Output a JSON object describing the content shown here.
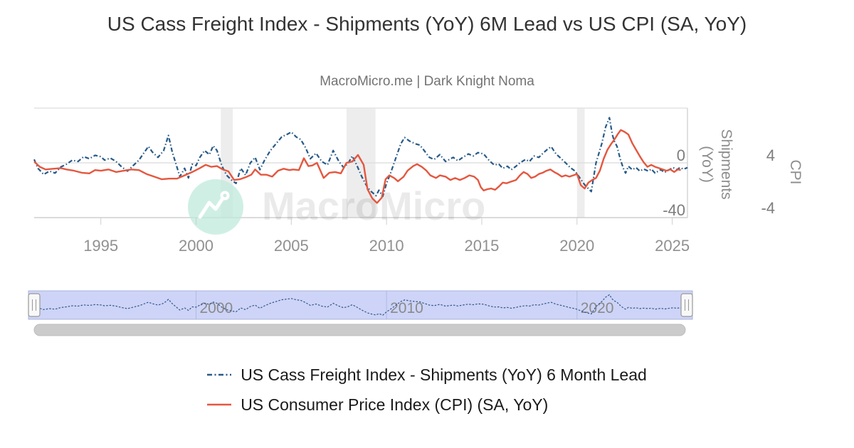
{
  "header": {
    "title": "US Cass Freight Index - Shipments (YoY) 6M Lead vs US CPI (SA, YoY)",
    "subtitle": "MacroMicro.me | Dark Knight Noma"
  },
  "watermark": {
    "text": "MacroMicro"
  },
  "chart_data": {
    "type": "line",
    "x_range": [
      1991.5,
      2025.8
    ],
    "x_ticks": [
      1995,
      2000,
      2005,
      2010,
      2015,
      2020,
      2025
    ],
    "grid": "horizontal-only",
    "legend_position": "bottom-left-aligned-centered-block",
    "axes": {
      "y1": {
        "title": "Shipments (YoY)",
        "side": "right",
        "ticks": [
          {
            "value": 0,
            "label": "0"
          },
          {
            "value": -40,
            "label": "-40"
          }
        ],
        "visible_range": [
          -44,
          40
        ]
      },
      "y2": {
        "title": "CPI",
        "side": "far-right",
        "ticks": [
          {
            "value": 4,
            "label": "4"
          },
          {
            "value": -4,
            "label": "-4"
          }
        ],
        "visible_range": [
          -4.3,
          12.3
        ]
      }
    },
    "recession_bands": [
      [
        2001.3,
        2001.93
      ],
      [
        2007.9,
        2009.42
      ],
      [
        2020.0,
        2020.4
      ]
    ],
    "series": [
      {
        "name": "US Cass Freight Index - Shipments (YoY) 6 Month Lead",
        "color": "#275a87",
        "dash": "dash-dot",
        "axis": "y1",
        "points": [
          [
            1991.5,
            2.5
          ],
          [
            1991.7,
            -4
          ],
          [
            1992.0,
            -8.5
          ],
          [
            1992.3,
            -6
          ],
          [
            1992.6,
            -7.5
          ],
          [
            1992.9,
            -3
          ],
          [
            1993.2,
            -1
          ],
          [
            1993.5,
            2
          ],
          [
            1993.8,
            1
          ],
          [
            1994.1,
            4.5
          ],
          [
            1994.4,
            3
          ],
          [
            1994.7,
            5.5
          ],
          [
            1995.0,
            4.5
          ],
          [
            1995.2,
            2
          ],
          [
            1995.5,
            3.5
          ],
          [
            1995.8,
            1
          ],
          [
            1996.1,
            -3
          ],
          [
            1996.4,
            -6
          ],
          [
            1996.7,
            -2
          ],
          [
            1997.0,
            2
          ],
          [
            1997.3,
            8
          ],
          [
            1997.5,
            12
          ],
          [
            1997.7,
            8
          ],
          [
            1998.0,
            4
          ],
          [
            1998.3,
            9
          ],
          [
            1998.55,
            20
          ],
          [
            1998.75,
            8
          ],
          [
            1998.95,
            -1
          ],
          [
            1999.15,
            -10
          ],
          [
            1999.4,
            -4
          ],
          [
            1999.6,
            -11
          ],
          [
            1999.8,
            -1
          ],
          [
            2000.0,
            -2
          ],
          [
            2000.2,
            4
          ],
          [
            2000.45,
            9
          ],
          [
            2000.7,
            6
          ],
          [
            2000.9,
            12.5
          ],
          [
            2001.1,
            9
          ],
          [
            2001.35,
            -2
          ],
          [
            2001.6,
            -9
          ],
          [
            2001.9,
            -13
          ],
          [
            2002.1,
            -15
          ],
          [
            2002.35,
            -4
          ],
          [
            2002.6,
            -9
          ],
          [
            2002.85,
            0
          ],
          [
            2003.1,
            4
          ],
          [
            2003.35,
            -5
          ],
          [
            2003.6,
            2
          ],
          [
            2003.9,
            9
          ],
          [
            2004.2,
            14
          ],
          [
            2004.5,
            19
          ],
          [
            2004.8,
            21
          ],
          [
            2005.0,
            22.5
          ],
          [
            2005.25,
            19
          ],
          [
            2005.5,
            17
          ],
          [
            2005.75,
            11
          ],
          [
            2006.0,
            3
          ],
          [
            2006.3,
            7
          ],
          [
            2006.6,
            1
          ],
          [
            2006.9,
            -1.5
          ],
          [
            2007.2,
            9
          ],
          [
            2007.5,
            1
          ],
          [
            2007.75,
            -3.5
          ],
          [
            2008.0,
            0
          ],
          [
            2008.2,
            5
          ],
          [
            2008.45,
            -2
          ],
          [
            2008.7,
            -10
          ],
          [
            2009.0,
            -18
          ],
          [
            2009.2,
            -21
          ],
          [
            2009.45,
            -24
          ],
          [
            2009.6,
            -20
          ],
          [
            2009.8,
            -24.5
          ],
          [
            2010.0,
            -15
          ],
          [
            2010.2,
            -8
          ],
          [
            2010.5,
            4
          ],
          [
            2010.75,
            14
          ],
          [
            2010.95,
            18.5
          ],
          [
            2011.2,
            16
          ],
          [
            2011.5,
            14
          ],
          [
            2011.75,
            13
          ],
          [
            2012.0,
            8.5
          ],
          [
            2012.25,
            4
          ],
          [
            2012.5,
            2.5
          ],
          [
            2012.8,
            6
          ],
          [
            2013.1,
            1
          ],
          [
            2013.5,
            4
          ],
          [
            2013.75,
            1.5
          ],
          [
            2014.0,
            4
          ],
          [
            2014.3,
            6.5
          ],
          [
            2014.55,
            5
          ],
          [
            2014.8,
            7.5
          ],
          [
            2015.1,
            6.5
          ],
          [
            2015.4,
            1.5
          ],
          [
            2015.65,
            -1.5
          ],
          [
            2015.9,
            -1
          ],
          [
            2016.1,
            -4
          ],
          [
            2016.35,
            -2.5
          ],
          [
            2016.55,
            -5
          ],
          [
            2016.8,
            -2.5
          ],
          [
            2017.0,
            0
          ],
          [
            2017.3,
            2.5
          ],
          [
            2017.5,
            1
          ],
          [
            2017.75,
            5
          ],
          [
            2018.0,
            4
          ],
          [
            2018.25,
            7.5
          ],
          [
            2018.5,
            10.5
          ],
          [
            2018.65,
            11.8
          ],
          [
            2018.9,
            6.5
          ],
          [
            2019.1,
            4
          ],
          [
            2019.4,
            0
          ],
          [
            2019.65,
            -3.5
          ],
          [
            2019.9,
            -6
          ],
          [
            2020.1,
            -10
          ],
          [
            2020.4,
            -16
          ],
          [
            2020.75,
            -21
          ],
          [
            2021.0,
            0
          ],
          [
            2021.3,
            14
          ],
          [
            2021.5,
            26
          ],
          [
            2021.7,
            33
          ],
          [
            2021.85,
            21
          ],
          [
            2021.95,
            16
          ],
          [
            2022.1,
            12
          ],
          [
            2022.2,
            6.5
          ],
          [
            2022.3,
            1.5
          ],
          [
            2022.45,
            -4.5
          ],
          [
            2022.55,
            -7.5
          ],
          [
            2022.7,
            -2.5
          ],
          [
            2022.9,
            -5
          ],
          [
            2023.1,
            -3.5
          ],
          [
            2023.3,
            -6
          ],
          [
            2023.5,
            -4.5
          ],
          [
            2023.75,
            -6
          ],
          [
            2023.9,
            -4.5
          ],
          [
            2024.1,
            -7.5
          ],
          [
            2024.4,
            -5
          ],
          [
            2024.6,
            -7
          ],
          [
            2024.9,
            -4.5
          ],
          [
            2025.05,
            -3.5
          ],
          [
            2025.25,
            -5
          ],
          [
            2025.4,
            -3.5
          ],
          [
            2025.6,
            -4.6
          ],
          [
            2025.8,
            -3.5
          ]
        ]
      },
      {
        "name": "US Consumer Price Index (CPI) (SA, YoY)",
        "color": "#e4573f",
        "dash": "solid",
        "axis": "y2",
        "points": [
          [
            1991.5,
            4.2
          ],
          [
            1991.8,
            3.4
          ],
          [
            1992.1,
            3.0
          ],
          [
            1992.5,
            3.1
          ],
          [
            1992.9,
            3.2
          ],
          [
            1993.2,
            3.0
          ],
          [
            1993.6,
            2.8
          ],
          [
            1994.0,
            2.5
          ],
          [
            1994.4,
            2.4
          ],
          [
            1994.7,
            2.9
          ],
          [
            1995.0,
            2.8
          ],
          [
            1995.4,
            3.0
          ],
          [
            1995.8,
            2.6
          ],
          [
            1996.2,
            2.8
          ],
          [
            1996.6,
            3.0
          ],
          [
            1997.0,
            2.9
          ],
          [
            1997.4,
            2.3
          ],
          [
            1997.8,
            1.9
          ],
          [
            1998.2,
            1.5
          ],
          [
            1998.6,
            1.6
          ],
          [
            1999.0,
            1.6
          ],
          [
            1999.4,
            2.1
          ],
          [
            1999.8,
            2.6
          ],
          [
            2000.2,
            3.2
          ],
          [
            2000.5,
            3.7
          ],
          [
            2000.8,
            3.4
          ],
          [
            2001.1,
            3.5
          ],
          [
            2001.4,
            3.0
          ],
          [
            2001.7,
            2.7
          ],
          [
            2002.0,
            1.4
          ],
          [
            2002.3,
            1.5
          ],
          [
            2002.6,
            1.8
          ],
          [
            2002.9,
            2.2
          ],
          [
            2003.1,
            3.0
          ],
          [
            2003.4,
            2.2
          ],
          [
            2003.7,
            2.2
          ],
          [
            2004.0,
            1.9
          ],
          [
            2004.3,
            2.8
          ],
          [
            2004.6,
            3.1
          ],
          [
            2004.9,
            2.9
          ],
          [
            2005.1,
            3.0
          ],
          [
            2005.4,
            2.9
          ],
          [
            2005.66,
            4.7
          ],
          [
            2005.9,
            3.5
          ],
          [
            2006.1,
            3.6
          ],
          [
            2006.35,
            4.0
          ],
          [
            2006.7,
            1.7
          ],
          [
            2007.0,
            2.5
          ],
          [
            2007.3,
            2.6
          ],
          [
            2007.6,
            2.4
          ],
          [
            2007.9,
            4.0
          ],
          [
            2008.2,
            4.2
          ],
          [
            2008.5,
            5.2
          ],
          [
            2008.8,
            3.7
          ],
          [
            2009.0,
            0.0
          ],
          [
            2009.25,
            -1.4
          ],
          [
            2009.5,
            -2.1
          ],
          [
            2009.75,
            -1.3
          ],
          [
            2009.95,
            1.5
          ],
          [
            2010.15,
            2.1
          ],
          [
            2010.4,
            1.7
          ],
          [
            2010.6,
            1.2
          ],
          [
            2010.9,
            1.9
          ],
          [
            2011.1,
            2.8
          ],
          [
            2011.4,
            3.5
          ],
          [
            2011.6,
            3.8
          ],
          [
            2011.85,
            3.4
          ],
          [
            2012.1,
            2.8
          ],
          [
            2012.3,
            2.1
          ],
          [
            2012.6,
            1.7
          ],
          [
            2012.8,
            2.1
          ],
          [
            2013.1,
            1.9
          ],
          [
            2013.35,
            1.4
          ],
          [
            2013.6,
            1.7
          ],
          [
            2013.85,
            1.4
          ],
          [
            2014.1,
            1.7
          ],
          [
            2014.35,
            2.1
          ],
          [
            2014.6,
            1.9
          ],
          [
            2014.8,
            1.4
          ],
          [
            2014.95,
            0.3
          ],
          [
            2015.1,
            -0.2
          ],
          [
            2015.3,
            0.0
          ],
          [
            2015.5,
            0.1
          ],
          [
            2015.7,
            -0.1
          ],
          [
            2015.9,
            0.4
          ],
          [
            2016.1,
            1.0
          ],
          [
            2016.3,
            0.9
          ],
          [
            2016.5,
            1.1
          ],
          [
            2016.8,
            1.4
          ],
          [
            2017.0,
            2.1
          ],
          [
            2017.2,
            2.6
          ],
          [
            2017.4,
            2.3
          ],
          [
            2017.6,
            1.7
          ],
          [
            2017.8,
            1.9
          ],
          [
            2018.0,
            2.3
          ],
          [
            2018.2,
            2.5
          ],
          [
            2018.4,
            2.8
          ],
          [
            2018.6,
            3.0
          ],
          [
            2018.8,
            2.6
          ],
          [
            2019.0,
            2.3
          ],
          [
            2019.2,
            1.9
          ],
          [
            2019.4,
            2.1
          ],
          [
            2019.6,
            1.9
          ],
          [
            2019.8,
            2.1
          ],
          [
            2020.0,
            2.3
          ],
          [
            2020.2,
            0.6
          ],
          [
            2020.4,
            0.1
          ],
          [
            2020.6,
            1.0
          ],
          [
            2020.8,
            1.4
          ],
          [
            2021.0,
            1.7
          ],
          [
            2021.2,
            2.8
          ],
          [
            2021.4,
            4.6
          ],
          [
            2021.6,
            6.0
          ],
          [
            2021.8,
            6.9
          ],
          [
            2022.0,
            7.7
          ],
          [
            2022.15,
            8.4
          ],
          [
            2022.3,
            9.0
          ],
          [
            2022.5,
            8.7
          ],
          [
            2022.7,
            8.3
          ],
          [
            2022.9,
            7.0
          ],
          [
            2023.1,
            6.0
          ],
          [
            2023.3,
            5.0
          ],
          [
            2023.5,
            4.1
          ],
          [
            2023.7,
            3.4
          ],
          [
            2023.9,
            3.7
          ],
          [
            2024.1,
            3.4
          ],
          [
            2024.3,
            3.2
          ],
          [
            2024.5,
            3.0
          ],
          [
            2024.7,
            2.8
          ],
          [
            2024.9,
            3.0
          ],
          [
            2025.1,
            2.6
          ],
          [
            2025.3,
            3.0
          ],
          [
            2025.45,
            2.9
          ]
        ]
      }
    ],
    "navigator": {
      "tick_years": [
        2000,
        2010,
        2020
      ],
      "tick_labels": [
        "2000",
        "2010",
        "2020"
      ]
    }
  },
  "legend": {
    "items": [
      {
        "label": "US Cass Freight Index - Shipments (YoY) 6 Month Lead"
      },
      {
        "label": "US Consumer Price Index (CPI) (SA, YoY)"
      }
    ]
  }
}
